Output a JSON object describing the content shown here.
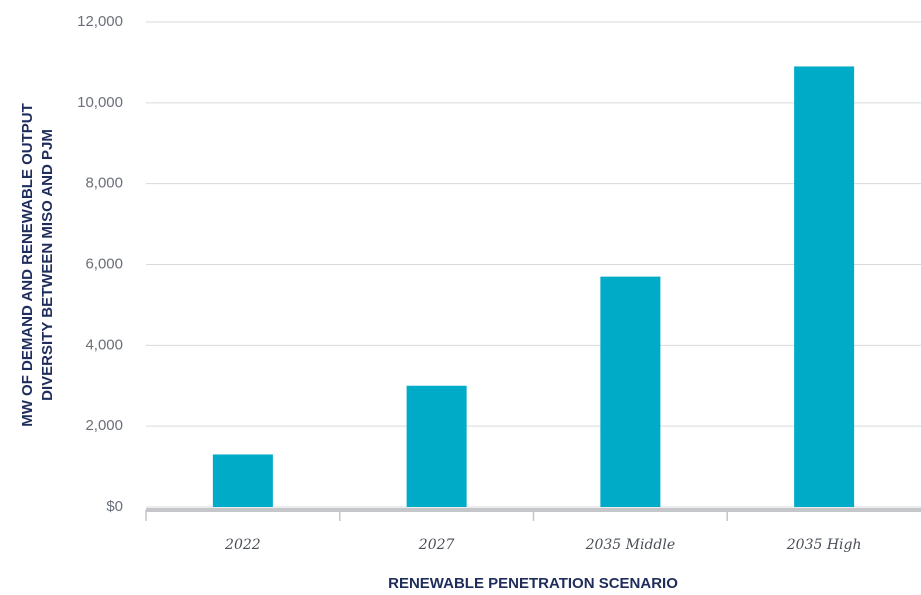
{
  "chart_data": {
    "type": "bar",
    "y_axis_label": [
      "MW OF DEMAND AND RENEWABLE OUTPUT",
      "DIVERSITY BETWEEN MISO AND PJM"
    ],
    "x_axis_label": "RENEWABLE PENETRATION SCENARIO",
    "categories": [
      "2022",
      "2027",
      "2035 Middle",
      "2035 High"
    ],
    "values": [
      1300,
      3000,
      5700,
      10900
    ],
    "color": "#00abc7",
    "ylim": [
      0,
      12000
    ],
    "yticks": [
      {
        "value": 0,
        "label": "$0"
      },
      {
        "value": 2000,
        "label": "2,000"
      },
      {
        "value": 4000,
        "label": "4,000"
      },
      {
        "value": 6000,
        "label": "6,000"
      },
      {
        "value": 8000,
        "label": "8,000"
      },
      {
        "value": 10000,
        "label": "10,000"
      },
      {
        "value": 12000,
        "label": "12,000"
      }
    ],
    "grid": true
  }
}
